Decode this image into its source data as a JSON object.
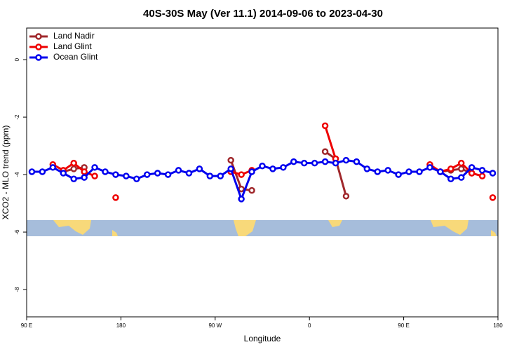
{
  "chart_data": {
    "type": "line",
    "title": "40S-30S May (Ver 11.1)   2014-09-06 to 2023-04-30",
    "x_label": "Longitude",
    "y_label": "XCO2 - MLO trend (ppm)",
    "xlim": [
      90,
      540
    ],
    "ylim": [
      -8.95,
      1.1
    ],
    "xticks": [
      {
        "value": 90,
        "label": "90 E"
      },
      {
        "value": 180,
        "label": "180"
      },
      {
        "value": 270,
        "label": "90 W"
      },
      {
        "value": 360,
        "label": "0"
      },
      {
        "value": 450,
        "label": "90 E"
      },
      {
        "value": 540,
        "label": "180"
      }
    ],
    "yticks": [
      0,
      -2,
      -4,
      -6,
      -8
    ],
    "legend": "top-left",
    "series": [
      {
        "name": "Land Nadir",
        "color": "#a0282c",
        "x": [
          125,
          135,
          145,
          155,
          285,
          295,
          305,
          315,
          375,
          385,
          395,
          405,
          485,
          495,
          505,
          515
        ],
        "values": [
          -3.9,
          -3.8,
          -3.75,
          null,
          -3.5,
          -4.5,
          -4.55,
          null,
          -3.2,
          -3.45,
          -4.75,
          null,
          -3.9,
          -3.85,
          -3.8,
          -3.95
        ]
      },
      {
        "name": "Land Glint",
        "color": "#ee0000",
        "x": [
          115,
          125,
          135,
          145,
          155,
          165,
          175,
          185,
          285,
          295,
          305,
          315,
          375,
          385,
          395,
          475,
          485,
          495,
          505,
          515,
          525,
          530,
          535
        ],
        "values": [
          -3.65,
          -3.85,
          -3.6,
          -3.9,
          -4.05,
          null,
          -4.8,
          null,
          -3.9,
          -4.0,
          -3.85,
          null,
          -2.3,
          -3.45,
          null,
          -3.65,
          -3.9,
          -3.8,
          -3.6,
          -3.95,
          -4.05,
          null,
          -4.8
        ]
      },
      {
        "name": "Ocean Glint",
        "color": "#0000ee",
        "x": [
          95,
          105,
          115,
          125,
          135,
          145,
          155,
          165,
          175,
          185,
          195,
          205,
          215,
          225,
          235,
          245,
          255,
          265,
          275,
          285,
          295,
          305,
          315,
          325,
          335,
          345,
          355,
          365,
          375,
          385,
          395,
          405,
          415,
          425,
          435,
          445,
          455,
          465,
          475,
          485,
          495,
          505,
          515,
          525,
          535
        ],
        "values": [
          -3.9,
          -3.9,
          -3.75,
          -3.95,
          -4.15,
          -4.1,
          -3.75,
          -3.9,
          -4.0,
          -4.05,
          -4.15,
          -4.0,
          -3.95,
          -4.0,
          -3.85,
          -3.95,
          -3.8,
          -4.05,
          -4.05,
          -3.8,
          -4.85,
          -3.9,
          -3.7,
          -3.8,
          -3.75,
          -3.55,
          -3.6,
          -3.6,
          -3.55,
          -3.6,
          -3.5,
          -3.55,
          -3.8,
          -3.9,
          -3.85,
          -4.0,
          -3.9,
          -3.9,
          -3.75,
          -3.9,
          -4.15,
          -4.1,
          -3.75,
          -3.85,
          -3.95
        ]
      }
    ]
  }
}
